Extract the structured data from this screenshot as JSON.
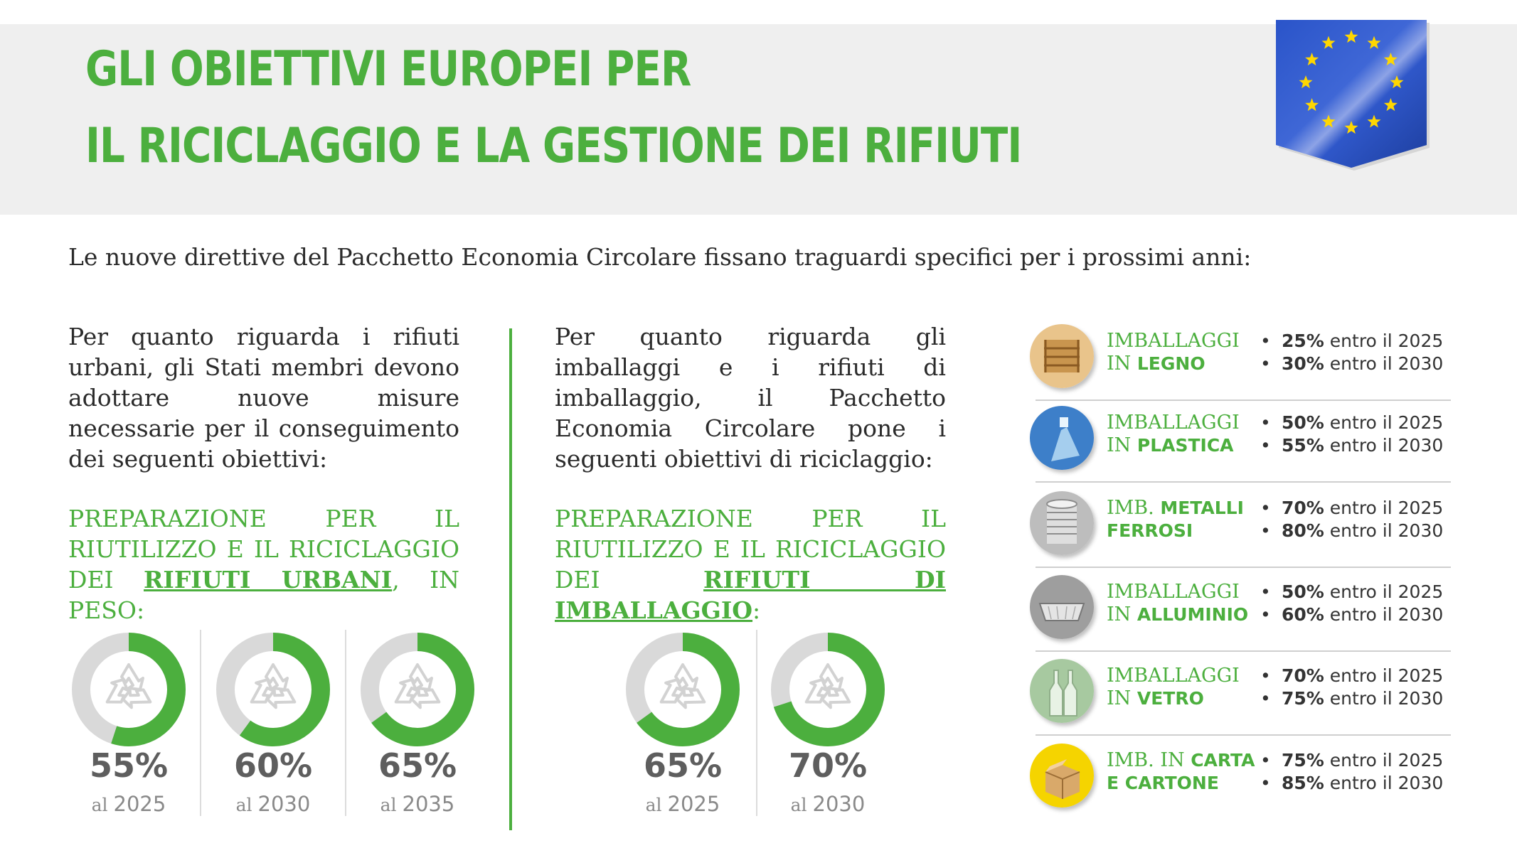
{
  "header": {
    "title_line1": "GLI OBIETTIVI EUROPEI PER",
    "title_line2": "IL RICICLAGGIO E LA GESTIONE DEI RIFIUTI",
    "flag_icon": "eu-flag-icon"
  },
  "intro": "Le nuove direttive del Pacchetto Economia Circolare fissano traguardi specifici per i prossimi anni:",
  "urban": {
    "text": "Per quanto riguarda i rifiuti urbani, gli Stati membri devono adottare nuove misure necessarie per il conseguimento dei seguenti obiettivi:",
    "heading_pre": "PREPARAZIONE PER IL RIUTILIZZO E IL RICICLAGGIO DEI ",
    "heading_bold": "RIFIUTI URBANI",
    "heading_post": ", IN PESO:",
    "targets": [
      {
        "value": 55,
        "label": "55%",
        "prefix": "al",
        "year": "2025"
      },
      {
        "value": 60,
        "label": "60%",
        "prefix": "al",
        "year": "2030"
      },
      {
        "value": 65,
        "label": "65%",
        "prefix": "al",
        "year": "2035"
      }
    ]
  },
  "packaging": {
    "text": "Per quanto riguarda gli imballaggi e i rifiuti di imballaggio, il Pacchetto Economia Circolare pone i seguenti obiettivi di riciclaggio:",
    "heading_pre": "PREPARAZIONE PER IL RIUTILIZZO E IL RICICLAGGIO DEI ",
    "heading_bold": "RIFIUTI DI IMBALLAGGIO",
    "heading_post": ":",
    "targets": [
      {
        "value": 65,
        "label": "65%",
        "prefix": "al",
        "year": "2025"
      },
      {
        "value": 70,
        "label": "70%",
        "prefix": "al",
        "year": "2030"
      }
    ]
  },
  "materials": [
    {
      "icon": "wooden-crate-icon",
      "label_pre": "IMBALLAGGI",
      "label_plain2": "IN ",
      "label_bold": "LEGNO",
      "t1_pct": "25%",
      "t1_rest": " entro il 2025",
      "t2_pct": "30%",
      "t2_rest": " entro il 2030"
    },
    {
      "icon": "plastic-bottle-icon",
      "label_pre": "IMBALLAGGI",
      "label_plain2": "IN ",
      "label_bold": "PLASTICA",
      "t1_pct": "50%",
      "t1_rest": " entro il 2025",
      "t2_pct": "55%",
      "t2_rest": " entro il 2030"
    },
    {
      "icon": "metal-can-icon",
      "label_pre": "IMB. ",
      "label_pre_bold": "METALLI",
      "label_plain2": "",
      "label_bold": "FERROSI",
      "t1_pct": "70%",
      "t1_rest": " entro il 2025",
      "t2_pct": "80%",
      "t2_rest": " entro il 2030"
    },
    {
      "icon": "aluminium-tray-icon",
      "label_pre": "IMBALLAGGI",
      "label_plain2": "IN ",
      "label_bold": "ALLUMINIO",
      "t1_pct": "50%",
      "t1_rest": " entro il 2025",
      "t2_pct": "60%",
      "t2_rest": " entro il 2030"
    },
    {
      "icon": "glass-bottle-icon",
      "label_pre": "IMBALLAGGI",
      "label_plain2": "IN ",
      "label_bold": "VETRO",
      "t1_pct": "70%",
      "t1_rest": " entro il 2025",
      "t2_pct": "75%",
      "t2_rest": " entro il 2030"
    },
    {
      "icon": "cardboard-box-icon",
      "label_pre": "IMB. IN ",
      "label_pre_bold": "CARTA",
      "label_plain2": "",
      "label_bold": "E CARTONE",
      "t1_pct": "75%",
      "t1_rest": " entro il 2025",
      "t2_pct": "85%",
      "t2_rest": " entro il 2030"
    }
  ],
  "colors": {
    "accent": "#4caf3e",
    "donut_track": "#d9d9d9",
    "eu_blue": "#2146b4",
    "eu_star": "#ffd700"
  }
}
